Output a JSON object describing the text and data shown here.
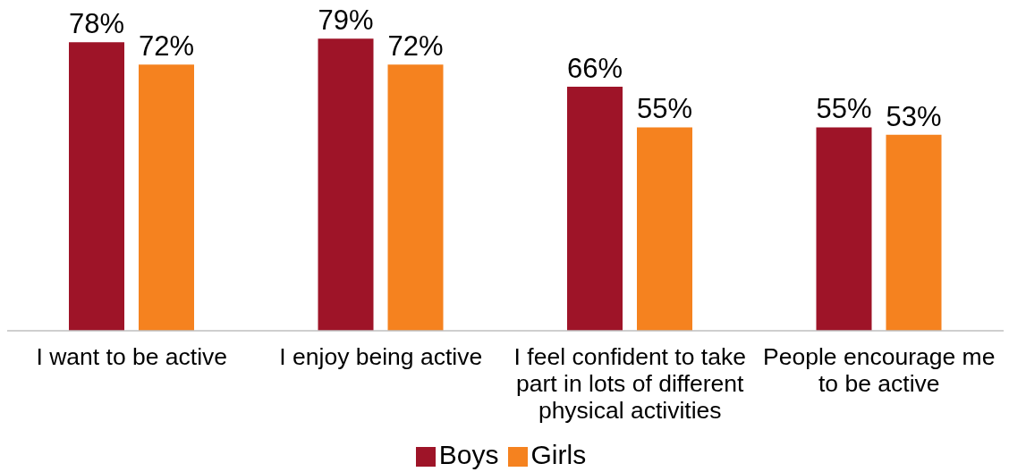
{
  "chart_data": {
    "type": "bar",
    "categories": [
      "I want to be active",
      "I enjoy being active",
      "I feel confident to take part in lots of different physical activities",
      "People encourage me to be active"
    ],
    "series": [
      {
        "name": "Boys",
        "color": "#9e1428",
        "values": [
          78,
          79,
          66,
          55
        ],
        "value_labels": [
          "78%",
          "79%",
          "66%",
          "55%"
        ]
      },
      {
        "name": "Girls",
        "color": "#f5821f",
        "values": [
          72,
          72,
          55,
          53
        ],
        "value_labels": [
          "72%",
          "72%",
          "55%",
          "53%"
        ]
      }
    ],
    "grid": false,
    "legend": "bottom"
  }
}
